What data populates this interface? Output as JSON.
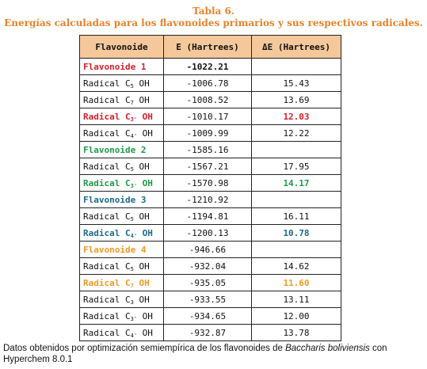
{
  "caption": {
    "line1": "Tabla 6.",
    "line2": "Energías calculadas para los flavonoides primarios y sus respectivos radicales."
  },
  "table": {
    "headers": [
      "Flavonoide",
      "E (Hartrees)",
      "ΔE (Hartrees)"
    ],
    "header_bg": "#f4c89a",
    "rows": [
      {
        "name": "Flavonoide 1",
        "sub": "",
        "suffix": "",
        "e": "-1022.21",
        "de": "",
        "color": "#d4202a",
        "bold": true
      },
      {
        "name": "Radical C",
        "sub": "5",
        "suffix": " OH",
        "e": "-1006.78",
        "de": "15.43",
        "color": "#111111",
        "bold": false
      },
      {
        "name": "Radical C",
        "sub": "7",
        "suffix": " OH",
        "e": "-1008.52",
        "de": "13.69",
        "color": "#111111",
        "bold": false
      },
      {
        "name": "Radical C",
        "sub": "3'",
        "suffix": " OH",
        "e": "-1010.17",
        "de": "12.03",
        "color": "#d4202a",
        "bold": true
      },
      {
        "name": "Radical C",
        "sub": "4'",
        "suffix": " OH",
        "e": "-1009.99",
        "de": "12.22",
        "color": "#111111",
        "bold": false
      },
      {
        "name": "Flavonoide 2",
        "sub": "",
        "suffix": "",
        "e": "-1585.16",
        "de": "",
        "color": "#1f9a4a",
        "bold": true
      },
      {
        "name": "Radical C",
        "sub": "5",
        "suffix": " OH",
        "e": "-1567.21",
        "de": "17.95",
        "color": "#111111",
        "bold": false
      },
      {
        "name": "Radical C",
        "sub": "3'",
        "suffix": " OH",
        "e": "-1570.98",
        "de": "14.17",
        "color": "#1f9a4a",
        "bold": true
      },
      {
        "name": "Flavonoide 3",
        "sub": "",
        "suffix": "",
        "e": "-1210.92",
        "de": "",
        "color": "#1b6a8c",
        "bold": true
      },
      {
        "name": "Radical C",
        "sub": "5",
        "suffix": " OH",
        "e": "-1194.81",
        "de": "16.11",
        "color": "#111111",
        "bold": false
      },
      {
        "name": "Radical C",
        "sub": "4'",
        "suffix": " OH",
        "e": "-1200.13",
        "de": "10.78",
        "color": "#1b6a8c",
        "bold": true
      },
      {
        "name": "Flavonoide 4",
        "sub": "",
        "suffix": "",
        "e": "-946.66",
        "de": "",
        "color": "#f39a22",
        "bold": true
      },
      {
        "name": "Radical C",
        "sub": "5",
        "suffix": " OH",
        "e": "-932.04",
        "de": "14.62",
        "color": "#111111",
        "bold": false
      },
      {
        "name": "Radical C",
        "sub": "7",
        "suffix": " OH",
        "e": "-935.05",
        "de": "11.60",
        "color": "#f39a22",
        "bold": true
      },
      {
        "name": "Radical C",
        "sub": "3",
        "suffix": " OH",
        "e": "-933.55",
        "de": "13.11",
        "color": "#111111",
        "bold": false
      },
      {
        "name": "Radical C",
        "sub": "3'",
        "suffix": " OH",
        "e": "-934.65",
        "de": "12.00",
        "color": "#111111",
        "bold": false
      },
      {
        "name": "Radical C",
        "sub": "4'",
        "suffix": " OH",
        "e": "-932.87",
        "de": "13.78",
        "color": "#111111",
        "bold": false
      }
    ]
  },
  "footnote": {
    "prefix": "Datos obtenidos por optimización semiempírica de los flavonoides de ",
    "species": "Baccharis boliviensis",
    "suffix": " con Hyperchem 8.0.1"
  }
}
